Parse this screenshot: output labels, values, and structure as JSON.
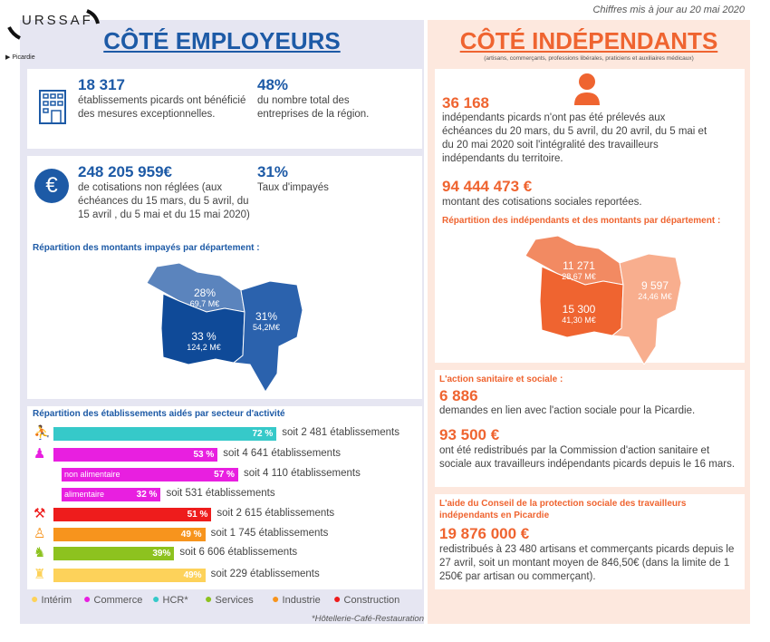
{
  "header": {
    "logo": "URSSAF",
    "region": "Picardie",
    "update": "Chiffres mis à jour au 20 mai 2020"
  },
  "employeurs": {
    "title": "CÔTÉ EMPLOYEURS",
    "card1": {
      "value": "18 317",
      "text": "établissements picards ont bénéficié des mesures exceptionnelles.",
      "pct": "48%",
      "pct_text": "du nombre total des entreprises de la région."
    },
    "card2": {
      "value": "248 205 959€",
      "text": "de cotisations non réglées (aux échéances du 15 mars, du 5 avril, du 15 avril , du 5 mai et du 15 mai 2020)",
      "pct": "31%",
      "pct_text": "Taux d'impayés",
      "map_title": "Répartition des montants impayés par département :",
      "map": [
        {
          "pct": "28%",
          "amount": "69,7 M€",
          "color": "#5b84bd"
        },
        {
          "pct": "33 %",
          "amount": "124,2 M€",
          "color": "#0f4a98"
        },
        {
          "pct": "31%",
          "amount": "54,2M€",
          "color": "#2b62ad"
        }
      ]
    },
    "sectors": {
      "title": "Répartition des établissements aidés par secteur d'activité",
      "rows": [
        {
          "sector": "HCR",
          "pct": 72,
          "label": "72 %",
          "count": "soit 2 481 établissements",
          "color": "#36c9c9",
          "icon": "waiter-icon"
        },
        {
          "sector": "Commerce",
          "pct": 53,
          "label": "53 %",
          "count": "soit 4 641 établissements",
          "color": "#e81fe0",
          "icon": "shopper-icon"
        },
        {
          "sector": "non alimentaire",
          "pct": 57,
          "label": "57 %",
          "count": "soit 4 110 établissements",
          "color": "#e81fe0",
          "sub": true
        },
        {
          "sector": "alimentaire",
          "pct": 32,
          "label": "32 %",
          "count": "soit 531 établissements",
          "color": "#e81fe0",
          "sub": true
        },
        {
          "sector": "Construction",
          "pct": 51,
          "label": "51 %",
          "count": "soit 2 615 établissements",
          "color": "#ee1c1c",
          "icon": "construction-worker-icon"
        },
        {
          "sector": "Industrie",
          "pct": 49,
          "label": "49 %",
          "count": "soit 1 745 établissements",
          "color": "#f7941d",
          "icon": "industry-worker-icon"
        },
        {
          "sector": "Services",
          "pct": 39,
          "label": "39%",
          "count": "soit 6 606 établissements",
          "color": "#8dc21f",
          "icon": "office-worker-icon"
        },
        {
          "sector": "Intérim",
          "pct": 49,
          "label": "49%",
          "count": "soit 229 établissements",
          "color": "#fdd25a",
          "icon": "temp-worker-icon"
        }
      ],
      "legend": [
        {
          "label": "Intérim",
          "color": "#fdd25a"
        },
        {
          "label": "Commerce",
          "color": "#e81fe0"
        },
        {
          "label": "HCR*",
          "color": "#36c9c9"
        },
        {
          "label": "Services",
          "color": "#8dc21f"
        },
        {
          "label": "Industrie",
          "color": "#f7941d"
        },
        {
          "label": "Construction",
          "color": "#ee1c1c"
        }
      ],
      "footnote": "*Hôtellerie-Café-Restauration"
    }
  },
  "independants": {
    "title": "CÔTÉ INDÉPENDANTS",
    "subtitle": "(artisans, commerçants, professions libérales, praticiens et auxiliaires médicaux)",
    "card1": {
      "value": "36 168",
      "text": "indépendants picards n'ont pas été prélevés aux échéances du 20 mars, du 5 avril, du 20 avril, du 5 mai et du 20 mai 2020 soit l'intégralité des travailleurs indépendants du territoire.",
      "value2": "94 444 473 €",
      "text2": "montant des cotisations sociales reportées.",
      "map_title": "Répartition des indépendants et des montants par département :",
      "map": [
        {
          "count": "11 271",
          "amount": "28,67 M€",
          "color": "#f28a62"
        },
        {
          "count": "15 300",
          "amount": "41,30 M€",
          "color": "#ef6430"
        },
        {
          "count": "9 597",
          "amount": "24,46 M€",
          "color": "#f8ae8e"
        }
      ]
    },
    "card2": {
      "title": "L'action sanitaire et sociale :",
      "value": "6 886",
      "text": "demandes en lien avec l'action sociale pour la Picardie.",
      "value2": "93 500 €",
      "text2": "ont été redistribués par la Commission d'action sanitaire et sociale aux travailleurs indépendants picards depuis le 16 mars."
    },
    "card3": {
      "title": "L'aide du Conseil de la protection sociale des travailleurs indépendants en Picardie",
      "value": "19 876 000 €",
      "text": "redistribués à 23 480 artisans et commerçants picards depuis le 27 avril, soit un montant moyen de 846,50€ (dans la limite de 1 250€ par artisan ou commerçant)."
    }
  }
}
